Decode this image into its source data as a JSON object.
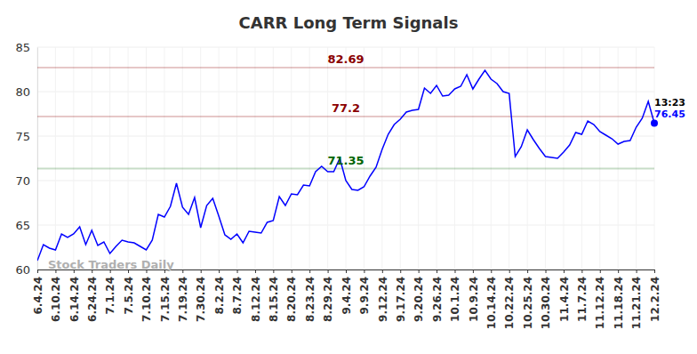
{
  "chart_data": {
    "type": "line",
    "title": "CARR Long Term Signals",
    "watermark": "Stock Traders Daily",
    "categories": [
      "6.4.24",
      null,
      null,
      "6.10.24",
      null,
      null,
      "6.14.24",
      null,
      null,
      "6.24.24",
      null,
      null,
      "7.1.24",
      null,
      null,
      "7.5.24",
      null,
      null,
      "7.10.24",
      null,
      null,
      "7.15.24",
      null,
      null,
      "7.19.24",
      null,
      null,
      "7.30.24",
      null,
      null,
      "8.2.24",
      null,
      null,
      "8.7.24",
      null,
      null,
      "8.12.24",
      null,
      null,
      "8.15.24",
      null,
      null,
      "8.20.24",
      null,
      null,
      "8.23.24",
      null,
      null,
      "8.29.24",
      null,
      null,
      "9.4.24",
      null,
      null,
      "9.9.24",
      null,
      null,
      "9.12.24",
      null,
      null,
      "9.17.24",
      null,
      null,
      "9.20.24",
      null,
      null,
      "9.26.24",
      null,
      null,
      "10.1.24",
      null,
      null,
      "10.9.24",
      null,
      null,
      "10.14.24",
      null,
      null,
      "10.22.24",
      null,
      null,
      "10.25.24",
      null,
      null,
      "10.30.24",
      null,
      null,
      "11.4.24",
      null,
      null,
      "11.7.24",
      null,
      null,
      "11.12.24",
      null,
      null,
      "11.18.24",
      null,
      null,
      "11.21.24",
      null,
      null,
      "12.2.24"
    ],
    "series": [
      {
        "color": "#0000ff",
        "end_label": "13:23",
        "values": [
          61.0,
          62.8,
          62.4,
          62.2,
          64.0,
          63.6,
          64.0,
          64.8,
          62.8,
          64.4,
          62.7,
          63.1,
          61.8,
          62.6,
          63.3,
          63.1,
          63.0,
          62.6,
          62.2,
          63.3,
          66.2,
          65.9,
          67.1,
          69.7,
          67.0,
          66.2,
          68.1,
          64.7,
          67.2,
          68.0,
          66.0,
          63.9,
          63.4,
          64.0,
          63.0,
          64.3,
          64.2,
          64.1,
          65.3,
          65.5,
          68.2,
          67.2,
          68.5,
          68.4,
          69.5,
          69.4,
          71.0,
          71.6,
          71.0,
          71.0,
          72.5,
          70.0,
          69.0,
          68.9,
          69.3,
          70.5,
          71.5,
          73.5,
          75.2,
          76.3,
          76.9,
          77.7,
          77.9,
          78.0,
          80.4,
          79.8,
          80.7,
          79.5,
          79.6,
          80.3,
          80.6,
          81.9,
          80.3,
          81.4,
          82.4,
          81.4,
          80.9,
          80.0,
          79.8,
          72.7,
          73.8,
          75.7,
          74.6,
          73.6,
          72.7,
          72.6,
          72.5,
          73.2,
          74.0,
          75.4,
          75.2,
          76.7,
          76.3,
          75.5,
          75.1,
          74.7,
          74.1,
          74.4,
          74.5,
          76.0,
          77.0,
          78.9,
          76.45
        ]
      }
    ],
    "annotations": [
      {
        "value": 82.69,
        "label": "82.69",
        "color": "#8b0000"
      },
      {
        "value": 77.2,
        "label": "77.2",
        "color": "#8b0000"
      },
      {
        "value": 71.35,
        "label": "71.35",
        "color": "#006400"
      }
    ],
    "ylim": [
      60,
      85
    ],
    "yticks": [
      60,
      65,
      70,
      75,
      80,
      85
    ],
    "grid": true
  }
}
